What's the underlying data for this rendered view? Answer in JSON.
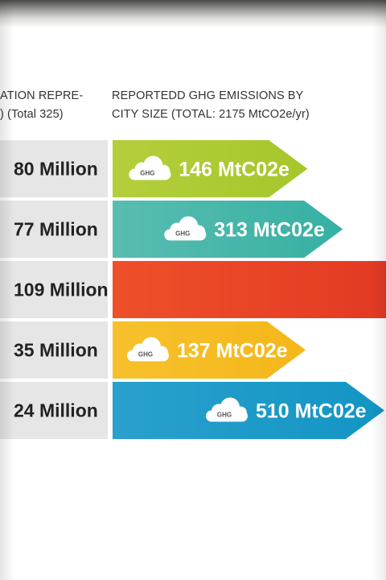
{
  "headers": {
    "left": "ATION REPRE-\n) (Total 325)",
    "right": "REPORTEDD GHG EMISSIONS BY\nCITY SIZE (TOTAL: 2175 MtCO2e/yr)"
  },
  "chart_data": {
    "type": "bar",
    "categories": [
      "80 Million",
      "77 Million",
      "109 Million",
      "35 Million",
      "24 Million"
    ],
    "series": [
      {
        "values": [
          146,
          313,
          null,
          137,
          510
        ]
      }
    ],
    "value_labels": [
      "146 MtC02e",
      "313 MtC02e",
      "",
      "137 MtC02e",
      "510 MtC02e"
    ],
    "cloud_label": "GHG",
    "colors": {
      "bars": [
        "#a6c62a",
        "#36b0a3",
        "#e33a24",
        "#f5b71a",
        "#1295c4"
      ],
      "bars_light": [
        "#b3cf3c",
        "#59bdb1",
        "#ee5029",
        "#f6c12c",
        "#2aa0cd"
      ],
      "pop_cell": "#e6e6e6",
      "pop_text": "#222222"
    },
    "xlim": [
      0,
      510
    ]
  }
}
